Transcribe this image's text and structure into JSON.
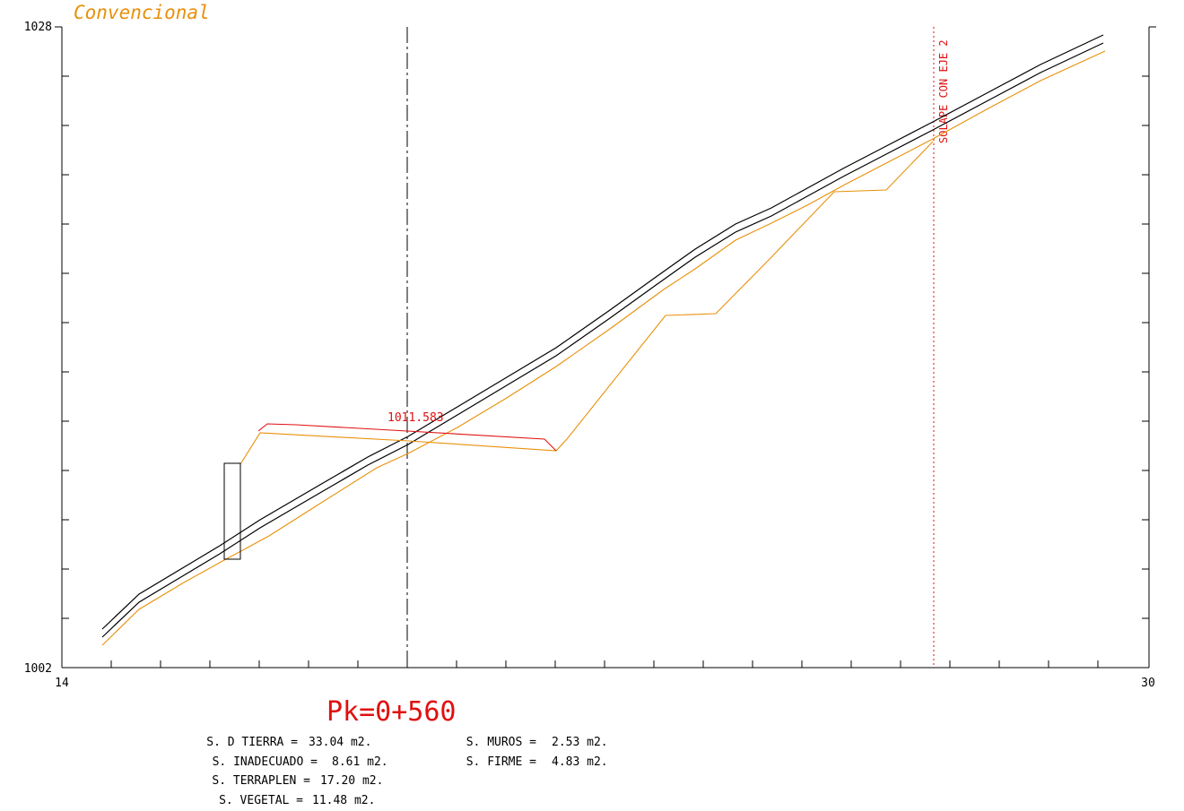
{
  "title": "Convencional",
  "axes": {
    "x_min_label": "14",
    "x_max_label": "30",
    "y_min_label": "1002",
    "y_max_label": "1028"
  },
  "annotations": {
    "elevation_label": "1011.583",
    "overlap_label": "SOLAPE CON EJE 2"
  },
  "pk_label": "Pk=0+560",
  "surfaces": {
    "left": [
      {
        "label": "S. D TIERRA =",
        "value": "33.04 m2."
      },
      {
        "label": "S. INADECUADO =",
        "value": "8.61 m2."
      },
      {
        "label": "S. TERRAPLEN =",
        "value": "17.20 m2."
      },
      {
        "label": "S. VEGETAL =",
        "value": "11.48 m2."
      }
    ],
    "right": [
      {
        "label": "S. MUROS =",
        "value": "2.53 m2."
      },
      {
        "label": "S. FIRME =",
        "value": "4.83 m2."
      }
    ]
  },
  "colors": {
    "frame": "#000000",
    "terrain": "#e8900a",
    "red": "#e01010",
    "title": "#e8900a"
  }
}
